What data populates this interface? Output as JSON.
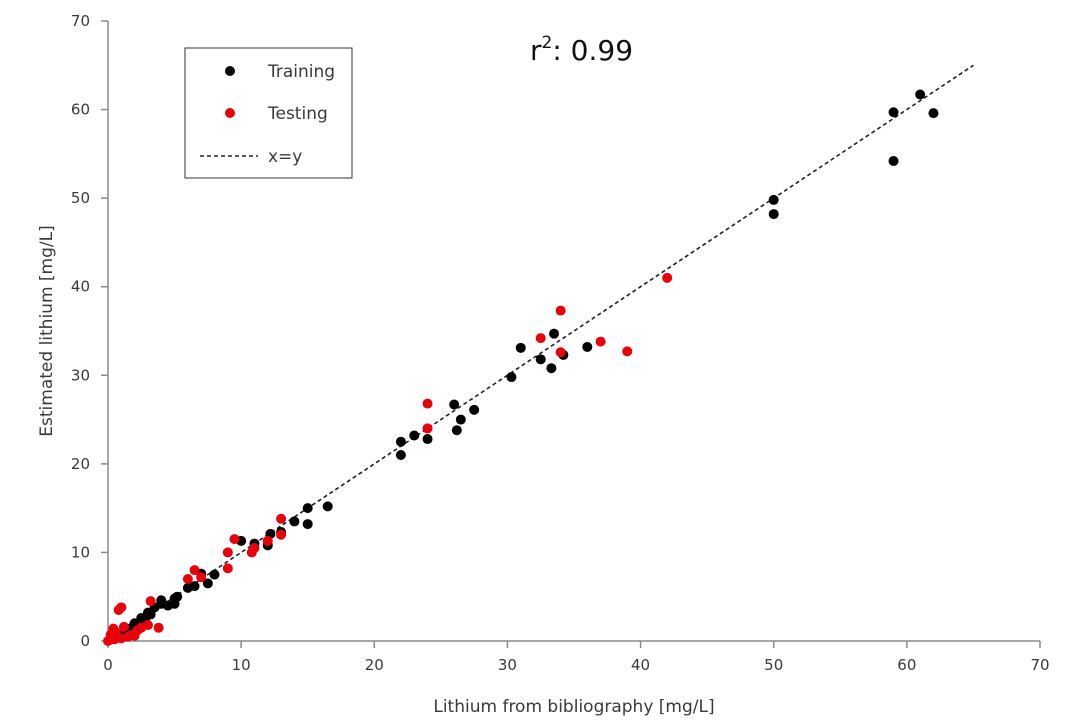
{
  "chart_data": {
    "type": "scatter",
    "title": "",
    "annotation": {
      "label": "r",
      "superscript": "2",
      "value": ": 0.99"
    },
    "xlabel": "Lithium from bibliography [mg/L]",
    "ylabel": "Estimated lithium [mg/L]",
    "xlim": [
      0,
      70
    ],
    "ylim": [
      0,
      70
    ],
    "xticks": [
      "0",
      "10",
      "20",
      "30",
      "40",
      "50",
      "60",
      "70"
    ],
    "yticks": [
      "0",
      "10",
      "20",
      "30",
      "40",
      "50",
      "60",
      "70"
    ],
    "grid": false,
    "legend_position": "top-left",
    "legend": [
      {
        "label": "Training",
        "kind": "marker",
        "color": "#000000"
      },
      {
        "label": "Testing",
        "kind": "marker",
        "color": "#e8000b"
      },
      {
        "label": "x=y",
        "kind": "dashed-line",
        "color": "#222222"
      }
    ],
    "series": [
      {
        "name": "Training",
        "color": "#000000",
        "points": [
          [
            0.1,
            0.1
          ],
          [
            0.2,
            0.3
          ],
          [
            0.3,
            0.5
          ],
          [
            0.5,
            0.4
          ],
          [
            0.6,
            0.8
          ],
          [
            0.8,
            0.6
          ],
          [
            1.0,
            0.9
          ],
          [
            1.2,
            1.1
          ],
          [
            1.5,
            1.0
          ],
          [
            1.8,
            1.5
          ],
          [
            2.0,
            2.0
          ],
          [
            2.3,
            1.8
          ],
          [
            2.5,
            2.6
          ],
          [
            2.8,
            2.2
          ],
          [
            3.0,
            3.2
          ],
          [
            3.2,
            3.0
          ],
          [
            3.5,
            3.8
          ],
          [
            4.0,
            4.2
          ],
          [
            4.0,
            4.6
          ],
          [
            4.5,
            4.0
          ],
          [
            5.0,
            4.8
          ],
          [
            5.0,
            4.2
          ],
          [
            5.2,
            5.0
          ],
          [
            6.0,
            6.0
          ],
          [
            6.5,
            6.2
          ],
          [
            7.0,
            7.6
          ],
          [
            7.5,
            6.5
          ],
          [
            8.0,
            7.5
          ],
          [
            10.0,
            11.3
          ],
          [
            11.0,
            11.0
          ],
          [
            12.0,
            10.8
          ],
          [
            12.2,
            12.1
          ],
          [
            13.0,
            12.3
          ],
          [
            14.0,
            13.5
          ],
          [
            15.0,
            15.0
          ],
          [
            15.0,
            13.2
          ],
          [
            16.5,
            15.2
          ],
          [
            22.0,
            22.5
          ],
          [
            22.0,
            21.0
          ],
          [
            23.0,
            23.2
          ],
          [
            24.0,
            22.8
          ],
          [
            26.0,
            26.7
          ],
          [
            26.2,
            23.8
          ],
          [
            26.5,
            25.0
          ],
          [
            27.5,
            26.1
          ],
          [
            30.3,
            29.8
          ],
          [
            31.0,
            33.1
          ],
          [
            32.5,
            31.8
          ],
          [
            33.3,
            30.8
          ],
          [
            33.5,
            34.7
          ],
          [
            34.2,
            32.3
          ],
          [
            36.0,
            33.2
          ],
          [
            50.0,
            49.8
          ],
          [
            50.0,
            48.2
          ],
          [
            59.0,
            59.7
          ],
          [
            59.0,
            54.2
          ],
          [
            61.0,
            61.7
          ],
          [
            62.0,
            59.6
          ]
        ]
      },
      {
        "name": "Testing",
        "color": "#e8000b",
        "points": [
          [
            0.0,
            0.0
          ],
          [
            0.2,
            0.7
          ],
          [
            0.3,
            0.3
          ],
          [
            0.4,
            1.4
          ],
          [
            0.5,
            0.2
          ],
          [
            0.6,
            1.0
          ],
          [
            0.7,
            0.5
          ],
          [
            0.8,
            3.5
          ],
          [
            1.0,
            3.8
          ],
          [
            1.0,
            0.3
          ],
          [
            1.2,
            1.6
          ],
          [
            1.5,
            0.5
          ],
          [
            1.8,
            0.7
          ],
          [
            2.0,
            0.6
          ],
          [
            2.2,
            1.2
          ],
          [
            2.5,
            1.5
          ],
          [
            3.0,
            1.8
          ],
          [
            3.2,
            4.5
          ],
          [
            3.8,
            1.5
          ],
          [
            6.0,
            7.0
          ],
          [
            6.5,
            8.0
          ],
          [
            7.0,
            7.2
          ],
          [
            9.0,
            8.2
          ],
          [
            9.0,
            10.0
          ],
          [
            9.5,
            11.5
          ],
          [
            10.8,
            10.0
          ],
          [
            11.0,
            10.5
          ],
          [
            12.0,
            11.3
          ],
          [
            13.0,
            13.8
          ],
          [
            13.0,
            12.0
          ],
          [
            24.0,
            26.8
          ],
          [
            24.0,
            24.0
          ],
          [
            32.5,
            34.2
          ],
          [
            34.0,
            37.3
          ],
          [
            34.0,
            32.6
          ],
          [
            37.0,
            33.8
          ],
          [
            39.0,
            32.7
          ],
          [
            42.0,
            41.0
          ]
        ]
      }
    ],
    "reference_line": {
      "name": "x=y",
      "from": [
        0,
        0
      ],
      "to": [
        65,
        65
      ]
    }
  }
}
